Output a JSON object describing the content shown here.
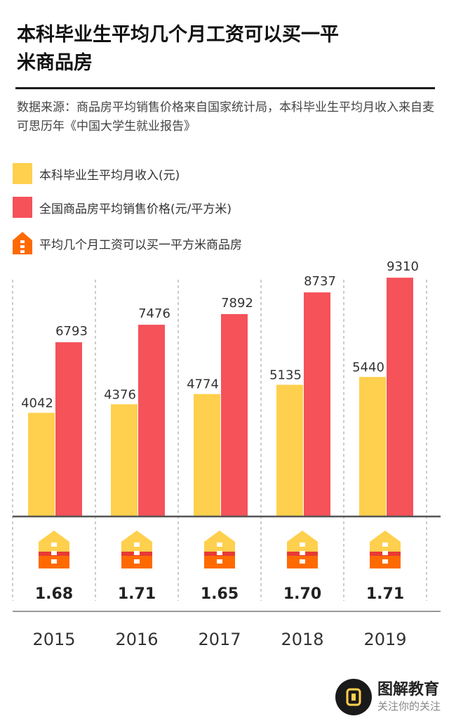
{
  "title": "本科毕业生平均几个月工资可以买一平米商品房",
  "source": "数据来源：商品房平均销售价格来自国家统计局，本科毕业生平均月收入来自麦可思历年《中国大学生就业报告》",
  "legend": [
    {
      "label": "本科毕业生平均月收入(元)",
      "color": "#ffd04d",
      "shape": "square"
    },
    {
      "label": "全国商品房平均销售价格(元/平方米)",
      "color": "#f5525a",
      "shape": "square"
    },
    {
      "label": "平均几个月工资可以买一平方米商品房",
      "color": "#ff6a00",
      "shape": "house-icon"
    }
  ],
  "colors": {
    "income": "#ffd04d",
    "price": "#f5525a",
    "house_top": "#ffd04d",
    "house_band": "#e83a35",
    "house_body": "#ff6a00"
  },
  "chart_data": {
    "type": "bar",
    "categories": [
      "2015",
      "2016",
      "2017",
      "2018",
      "2019"
    ],
    "series": [
      {
        "name": "本科毕业生平均月收入(元)",
        "values": [
          4042,
          4376,
          4774,
          5135,
          5440
        ]
      },
      {
        "name": "全国商品房平均销售价格(元/平方米)",
        "values": [
          6793,
          7476,
          7892,
          8737,
          9310
        ]
      }
    ],
    "ratio": {
      "name": "平均几个月工资可以买一平方米商品房",
      "values": [
        "1.68",
        "1.71",
        "1.65",
        "1.70",
        "1.71"
      ]
    },
    "ylim": [
      0,
      10000
    ],
    "grid": "vertical-dashed"
  },
  "watermark": {
    "name": "图解教育",
    "sub": "关注你的关注"
  }
}
